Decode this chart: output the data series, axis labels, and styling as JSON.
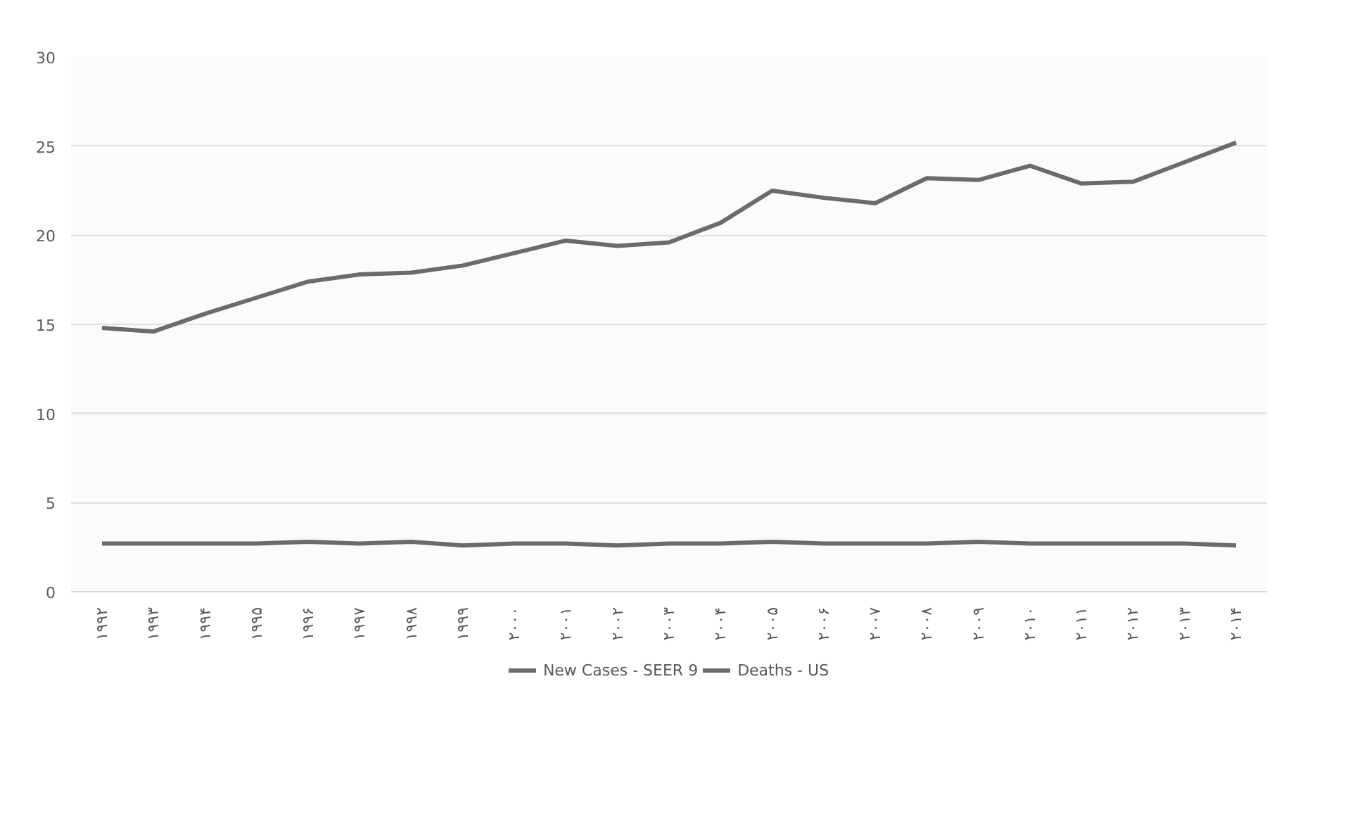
{
  "chart_data": {
    "type": "line",
    "categories": [
      "۱۹۹۲",
      "۱۹۹۳",
      "۱۹۹۴",
      "۱۹۹۵",
      "۱۹۹۶",
      "۱۹۹۷",
      "۱۹۹۸",
      "۱۹۹۹",
      "۲۰۰۰",
      "۲۰۰۱",
      "۲۰۰۲",
      "۲۰۰۳",
      "۲۰۰۴",
      "۲۰۰۵",
      "۲۰۰۶",
      "۲۰۰۷",
      "۲۰۰۸",
      "۲۰۰۹",
      "۲۰۱۰",
      "۲۰۱۱",
      "۲۰۱۲",
      "۲۰۱۳",
      "۲۰۱۴"
    ],
    "series": [
      {
        "name": "New Cases - SEER 9",
        "color": "#6b6b6b",
        "values": [
          14.8,
          14.6,
          15.6,
          16.5,
          17.4,
          17.8,
          17.9,
          18.3,
          19.0,
          19.7,
          19.4,
          19.6,
          20.7,
          22.5,
          22.1,
          21.8,
          23.2,
          23.1,
          23.9,
          22.9,
          23.0,
          24.1,
          25.2
        ]
      },
      {
        "name": "Deaths - US",
        "color": "#6b6b6b",
        "values": [
          2.7,
          2.7,
          2.7,
          2.7,
          2.8,
          2.7,
          2.8,
          2.6,
          2.7,
          2.7,
          2.6,
          2.7,
          2.7,
          2.8,
          2.7,
          2.7,
          2.7,
          2.8,
          2.7,
          2.7,
          2.7,
          2.7,
          2.6
        ]
      }
    ],
    "ylim": [
      0,
      30
    ],
    "yticks": [
      0,
      5,
      10,
      15,
      20,
      25,
      30
    ],
    "grid": "y",
    "legend": "bottom",
    "marker": "none",
    "line_style": "solid"
  }
}
